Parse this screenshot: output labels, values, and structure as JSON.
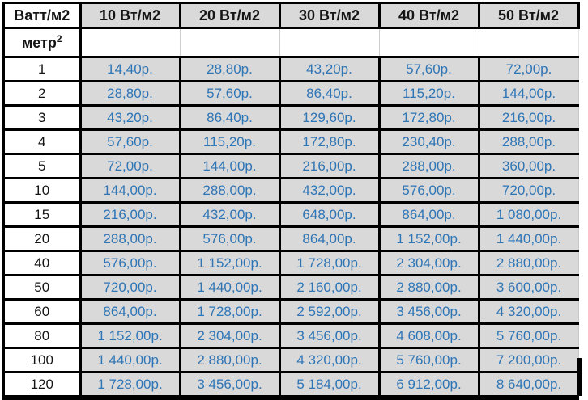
{
  "table": {
    "corner_header": "Ватт/м2",
    "unit_label": {
      "base": "метр",
      "sup": "2"
    },
    "columns": [
      "10 Вт/м2",
      "20 Вт/м2",
      "30 Вт/м2",
      "40 Вт/м2",
      "50 Вт/м2"
    ],
    "rows": [
      {
        "area": "1",
        "prices": [
          "14,40р.",
          "28,80р.",
          "43,20р.",
          "57,60р.",
          "72,00р."
        ]
      },
      {
        "area": "2",
        "prices": [
          "28,80р.",
          "57,60р.",
          "86,40р.",
          "115,20р.",
          "144,00р."
        ]
      },
      {
        "area": "3",
        "prices": [
          "43,20р.",
          "86,40р.",
          "129,60р.",
          "172,80р.",
          "216,00р."
        ]
      },
      {
        "area": "4",
        "prices": [
          "57,60р.",
          "115,20р.",
          "172,80р.",
          "230,40р.",
          "288,00р."
        ]
      },
      {
        "area": "5",
        "prices": [
          "72,00р.",
          "144,00р.",
          "216,00р.",
          "288,00р.",
          "360,00р."
        ]
      },
      {
        "area": "10",
        "prices": [
          "144,00р.",
          "288,00р.",
          "432,00р.",
          "576,00р.",
          "720,00р."
        ]
      },
      {
        "area": "15",
        "prices": [
          "216,00р.",
          "432,00р.",
          "648,00р.",
          "864,00р.",
          "1 080,00р."
        ]
      },
      {
        "area": "20",
        "prices": [
          "288,00р.",
          "576,00р.",
          "864,00р.",
          "1 152,00р.",
          "1 440,00р."
        ]
      },
      {
        "area": "40",
        "prices": [
          "576,00р.",
          "1 152,00р.",
          "1 728,00р.",
          "2 304,00р.",
          "2 880,00р."
        ]
      },
      {
        "area": "50",
        "prices": [
          "720,00р.",
          "1 440,00р.",
          "2 160,00р.",
          "2 880,00р.",
          "3 600,00р."
        ]
      },
      {
        "area": "60",
        "prices": [
          "864,00р.",
          "1 728,00р.",
          "2 592,00р.",
          "3 456,00р.",
          "4 320,00р."
        ]
      },
      {
        "area": "80",
        "prices": [
          "1 152,00р.",
          "2 304,00р.",
          "3 456,00р.",
          "4 608,00р.",
          "5 760,00р."
        ]
      },
      {
        "area": "100",
        "prices": [
          "1 440,00р.",
          "2 880,00р.",
          "4 320,00р.",
          "5 760,00р.",
          "7 200,00р."
        ]
      },
      {
        "area": "120",
        "prices": [
          "1 728,00р.",
          "3 456,00р.",
          "5 184,00р.",
          "6 912,00р.",
          "8 640,00р."
        ]
      }
    ]
  },
  "colors": {
    "price_text_blue": "#2e75b6",
    "cell_fill_gray": "#d9d9d9",
    "grid_black": "#000000"
  }
}
